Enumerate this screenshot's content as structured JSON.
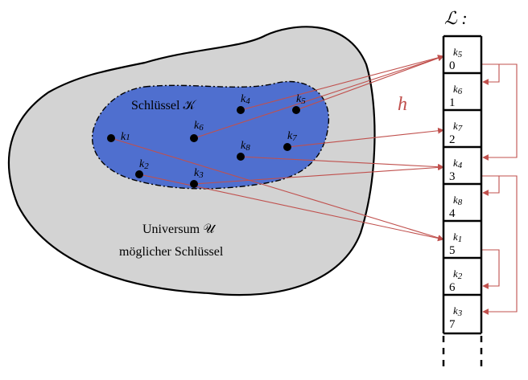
{
  "list_label": "ℒ :",
  "hash_label": "h",
  "key_set": {
    "label": "Schlüssel 𝒦",
    "keys": [
      {
        "id": "k1",
        "text": "k",
        "sub": "1"
      },
      {
        "id": "k2",
        "text": "k",
        "sub": "2"
      },
      {
        "id": "k3",
        "text": "k",
        "sub": "3"
      },
      {
        "id": "k4",
        "text": "k",
        "sub": "4"
      },
      {
        "id": "k5",
        "text": "k",
        "sub": "5"
      },
      {
        "id": "k6",
        "text": "k",
        "sub": "6"
      },
      {
        "id": "k7",
        "text": "k",
        "sub": "7"
      },
      {
        "id": "k8",
        "text": "k",
        "sub": "8"
      }
    ]
  },
  "universe": {
    "line1": "Universum 𝒰",
    "line2": "möglicher Schlüssel"
  },
  "slots": [
    {
      "index": "0",
      "key": "k",
      "sub": "5"
    },
    {
      "index": "1",
      "key": "k",
      "sub": "6"
    },
    {
      "index": "2",
      "key": "k",
      "sub": "7"
    },
    {
      "index": "3",
      "key": "k",
      "sub": "4"
    },
    {
      "index": "4",
      "key": "k",
      "sub": "8"
    },
    {
      "index": "5",
      "key": "k",
      "sub": "1"
    },
    {
      "index": "6",
      "key": "k",
      "sub": "2"
    },
    {
      "index": "7",
      "key": "k",
      "sub": "3"
    }
  ],
  "colors": {
    "universe_fill": "#d3d3d3",
    "keyset_fill": "#4f6fcf",
    "arrow": "#c0504d"
  }
}
